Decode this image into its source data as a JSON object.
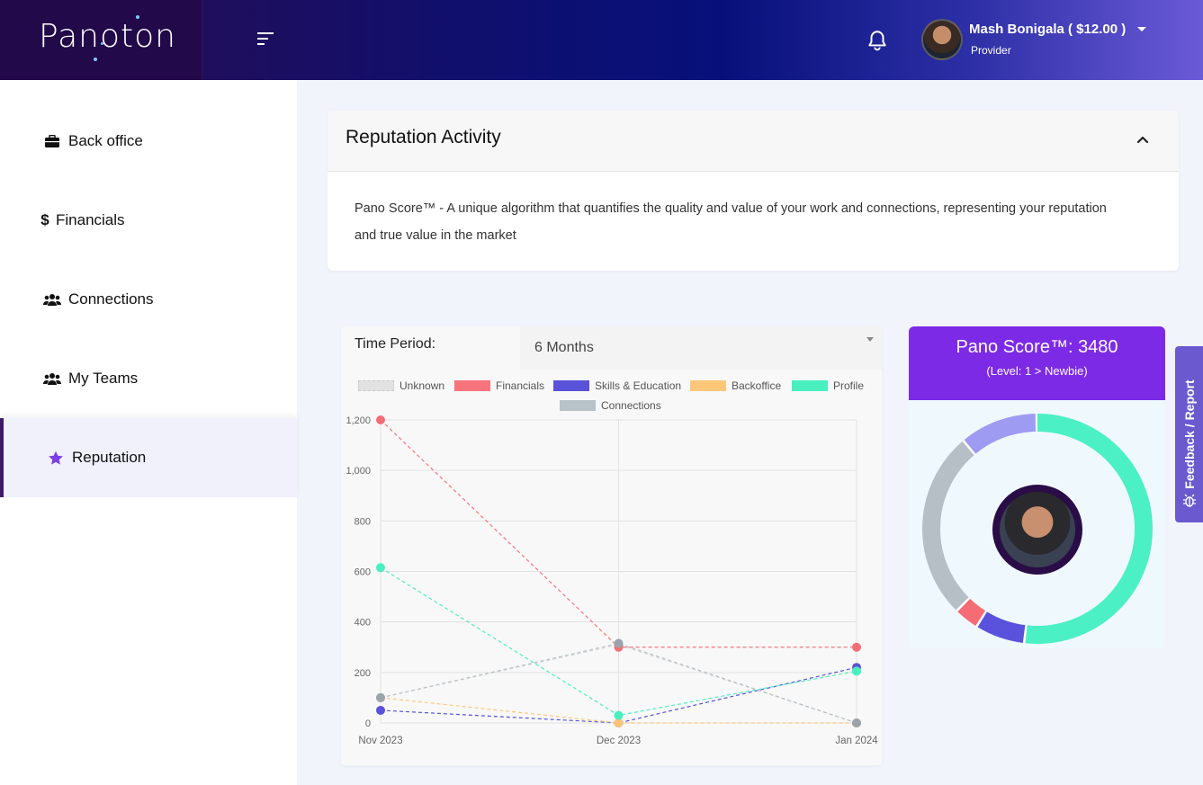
{
  "header": {
    "logo_text": "Panoton",
    "user_name": "Mash Bonigala ( $12.00 )",
    "user_role": "Provider"
  },
  "sidebar": {
    "items": [
      {
        "label": "Back office",
        "icon": "briefcase-icon"
      },
      {
        "label": "Financials",
        "icon": "dollar-icon"
      },
      {
        "label": "Connections",
        "icon": "users-icon"
      },
      {
        "label": "My Teams",
        "icon": "users-icon"
      },
      {
        "label": "Reputation",
        "icon": "star-icon",
        "active": true
      }
    ]
  },
  "reputation": {
    "title": "Reputation Activity",
    "description": "Pano Score™ - A unique algorithm that quantifies the quality and value of your work and connections, representing your reputation and true value in the market"
  },
  "time_period": {
    "label": "Time Period:",
    "value": "6 Months"
  },
  "score": {
    "title": "Pano Score™: 3480",
    "level": "(Level: 1 > Newbie)",
    "donut_segments": [
      {
        "color": "#4cf0c5",
        "value": 0.52
      },
      {
        "color": "#5a52dc",
        "value": 0.07
      },
      {
        "color": "#f56b76",
        "value": 0.035
      },
      {
        "color": "#b5bfc5",
        "value": 0.265
      },
      {
        "color": "#9e9bf2",
        "value": 0.11
      }
    ]
  },
  "feedback": {
    "label": "Feedback / Report"
  },
  "chart_data": {
    "type": "line",
    "categories": [
      "Nov 2023",
      "Dec 2023",
      "Jan 2024"
    ],
    "ylim": [
      0,
      1200
    ],
    "yticks": [
      "1,200",
      "1,000",
      "800",
      "600",
      "400",
      "200",
      "0"
    ],
    "grid": true,
    "legend_position": "top",
    "series": [
      {
        "name": "Unknown",
        "color": "#d8d8d8",
        "point_color": "#b7b7b7",
        "values": [
          100,
          310,
          0
        ]
      },
      {
        "name": "Financials",
        "color": "#f7747c",
        "point_color": "#f26d76",
        "values": [
          1200,
          300,
          300
        ]
      },
      {
        "name": "Skills & Education",
        "color": "#5a52d8",
        "point_color": "#5a52d8",
        "values": [
          50,
          0,
          220
        ]
      },
      {
        "name": "Backoffice",
        "color": "#fdc77a",
        "point_color": "#f9c478",
        "values": [
          100,
          0,
          0
        ]
      },
      {
        "name": "Profile",
        "color": "#4aefc0",
        "point_color": "#4aefc0",
        "values": [
          615,
          30,
          205
        ]
      },
      {
        "name": "Connections",
        "color": "#b8c2c9",
        "point_color": "#9aa4aa",
        "values": [
          100,
          315,
          0
        ]
      }
    ]
  }
}
